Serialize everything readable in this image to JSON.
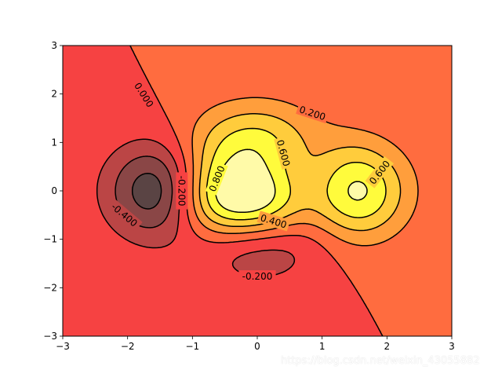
{
  "chart_data": {
    "type": "contour",
    "function": "(1 - x/2 + x^5 + y^3) * exp(-x^2 - y^2)",
    "xlim": [
      -3,
      3
    ],
    "ylim": [
      -3,
      3
    ],
    "x_ticks": [
      -3,
      -2,
      -1,
      0,
      1,
      2,
      3
    ],
    "y_ticks": [
      -3,
      -2,
      -1,
      0,
      1,
      2,
      3
    ],
    "x_tick_labels": [
      "−3",
      "−2",
      "−1",
      "0",
      "1",
      "2",
      "3"
    ],
    "y_tick_labels": [
      "−3",
      "−2",
      "−1",
      "0",
      "1",
      "2",
      "3"
    ],
    "levels": [
      -0.6,
      -0.4,
      -0.2,
      0.0,
      0.2,
      0.4,
      0.6,
      0.8
    ],
    "band_colors": [
      "#5a4444",
      "#8a4646",
      "#bb4545",
      "#f64242",
      "#ff6c3f",
      "#ff9e3c",
      "#ffcc3c",
      "#fffb3c",
      "#fffaa8",
      "#fffce0"
    ],
    "colormap": "hot",
    "contour_labels": [
      {
        "text": "0.000",
        "x": -1.75,
        "y": 1.98,
        "angle": 58
      },
      {
        "text": "-0.200",
        "x": -1.17,
        "y": 0.0,
        "angle": 90
      },
      {
        "text": "-0.400",
        "x": -2.05,
        "y": -0.5,
        "angle": 40
      },
      {
        "text": "0.200",
        "x": 0.85,
        "y": 1.6,
        "angle": 18
      },
      {
        "text": "0.600",
        "x": 0.4,
        "y": 0.78,
        "angle": 75
      },
      {
        "text": "0.800",
        "x": -0.62,
        "y": 0.25,
        "angle": -68
      },
      {
        "text": "0.400",
        "x": 0.25,
        "y": -0.63,
        "angle": 17
      },
      {
        "text": "0.600",
        "x": 1.89,
        "y": 0.38,
        "angle": -52
      },
      {
        "text": "-0.200",
        "x": 0.0,
        "y": -1.77,
        "angle": 0
      }
    ],
    "grid": false,
    "title": "",
    "xlabel": "",
    "ylabel": ""
  },
  "watermark": "https://blog.csdn.net/weixin_43055882"
}
